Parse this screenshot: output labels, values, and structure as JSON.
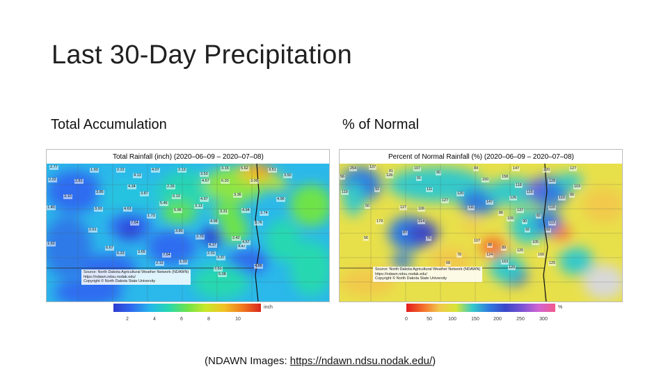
{
  "slide": {
    "title": "Last 30-Day Precipitation"
  },
  "left": {
    "heading": "Total Accumulation",
    "map_title": "Total Rainfall (inch) (2020–06–09 – 2020–07–08)",
    "credit": [
      "Source: North Dakota Agricultural Weather Network (NDAWN)",
      "https://ndawn.ndsu.nodak.edu/",
      "Copyright © North Dakota State University"
    ],
    "colorbar_unit": "inch",
    "colorbar_ticks": [
      "2",
      "4",
      "6",
      "8",
      "10"
    ],
    "labels": [
      "2.77",
      "1.93",
      "2.22",
      "4.13",
      "4.07",
      "2.13",
      "3.53",
      "3.15",
      "5.62",
      "3.51",
      "2.22",
      "2.81",
      "4.34",
      "2.26",
      "4.67",
      "6.20",
      "3.00",
      "3.50",
      "3.86",
      "3.10",
      "3.87",
      "6.13",
      "4.97",
      "3.36",
      "4.96",
      "1.40",
      "3.93",
      "4.63",
      "5.46",
      "3.13",
      "5.96",
      "3.31",
      "4.94",
      "2.74",
      "1.73",
      "7.54",
      "4.98",
      "3.76",
      "2.61",
      "3.80",
      "1.62",
      "2.70",
      "6.23",
      "3.65",
      "7.54",
      "2.42",
      "4.47",
      "4.17",
      "3.37",
      "2.12",
      "1.33",
      "7.51",
      "5.08",
      "4.88",
      "4.57",
      "2.31",
      "6.67"
    ]
  },
  "right": {
    "heading": "% of Normal",
    "map_title": "Percent of Normal Rainfall (%) (2020–06–09 – 2020–07–08)",
    "credit": [
      "Source: North Dakota Agricultural Weather Network (NDAWN)",
      "https://ndawn.ndsu.nodak.edu/",
      "Copyright © North Dakota State University"
    ],
    "colorbar_unit": "%",
    "colorbar_ticks": [
      "0",
      "50",
      "100",
      "150",
      "200",
      "250",
      "300"
    ],
    "labels": [
      "254",
      "137",
      "81",
      "107",
      "90",
      "84",
      "147",
      "220",
      "127",
      "128",
      "56",
      "91",
      "150",
      "158",
      "119",
      "92",
      "111",
      "118",
      "128",
      "103",
      "120",
      "115",
      "90",
      "127",
      "147",
      "126",
      "110",
      "50",
      "127",
      "106",
      "111",
      "86",
      "137",
      "115",
      "82",
      "179",
      "214",
      "90",
      "113",
      "109",
      "56",
      "87",
      "76",
      "107",
      "88",
      "82",
      "92",
      "89",
      "125",
      "105",
      "78",
      "68",
      "124",
      "163",
      "120",
      "100",
      "125"
    ]
  },
  "footer": {
    "prefix": "(NDAWN Images: ",
    "link": "https://ndawn.ndsu.nodak.edu/",
    "suffix": ")"
  }
}
